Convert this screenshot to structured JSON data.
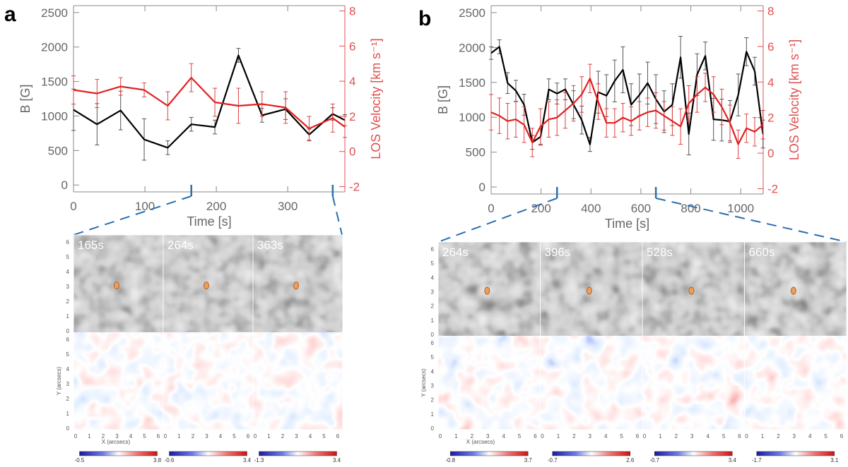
{
  "chart_data": [
    {
      "panel_label": "a",
      "type": "line",
      "xlabel": "Time [s]",
      "ylabel_left": "B [G]",
      "ylabel_right": "LOS Velocity [km s⁻¹]",
      "xlim": [
        0,
        380
      ],
      "ylim_left": [
        -100,
        2600
      ],
      "ylim_right": [
        -2.3,
        8.3
      ],
      "xticks": [
        0,
        100,
        200,
        300
      ],
      "yticks_left": [
        0,
        500,
        1000,
        1500,
        2000,
        2500
      ],
      "yticks_right": [
        -2,
        0,
        2,
        4,
        6,
        8
      ],
      "series": [
        {
          "name": "B",
          "axis": "left",
          "color": "#000000",
          "x": [
            0,
            33,
            66,
            99,
            132,
            165,
            198,
            231,
            264,
            297,
            330,
            363,
            380
          ],
          "values": [
            1090,
            880,
            1080,
            660,
            540,
            880,
            840,
            1880,
            1010,
            1100,
            730,
            1030,
            940
          ],
          "errors": [
            300,
            300,
            280,
            300,
            100,
            100,
            100,
            100,
            100,
            150,
            80,
            90,
            80
          ]
        },
        {
          "name": "LOS Velocity",
          "axis": "right",
          "color": "#e02020",
          "x": [
            0,
            33,
            66,
            99,
            132,
            165,
            198,
            231,
            264,
            297,
            330,
            363,
            380
          ],
          "values": [
            3.5,
            3.3,
            3.7,
            3.5,
            2.6,
            4.2,
            2.8,
            2.6,
            2.7,
            2.5,
            1.3,
            1.9,
            1.4
          ],
          "errors": [
            0.8,
            0.8,
            0.5,
            0.4,
            0.8,
            0.8,
            0.8,
            1.0,
            0.7,
            0.9,
            0.7,
            0.8,
            0.6
          ]
        }
      ],
      "marked_times": [
        165,
        363
      ],
      "snapshots": [
        {
          "time_label": "165s",
          "colorbar_min": "-0.5",
          "colorbar_max": "3.8"
        },
        {
          "time_label": "264s",
          "colorbar_min": "-0.6",
          "colorbar_max": "3.4"
        },
        {
          "time_label": "363s",
          "colorbar_min": "-1.3",
          "colorbar_max": "3.4"
        }
      ],
      "map_axes": {
        "xlabel": "X (arcsecs)",
        "ylabel": "Y (arcsecs)",
        "ticks": [
          "0",
          "1",
          "2",
          "3",
          "4",
          "5",
          "6"
        ]
      }
    },
    {
      "panel_label": "b",
      "type": "line",
      "xlabel": "Time [s]",
      "ylabel_left": "B [G]",
      "ylabel_right": "LOS Velocity [km s⁻¹]",
      "xlim": [
        0,
        1090
      ],
      "ylim_left": [
        -100,
        2600
      ],
      "ylim_right": [
        -2.3,
        8.3
      ],
      "xticks": [
        0,
        200,
        400,
        600,
        800,
        1000
      ],
      "yticks_left": [
        0,
        500,
        1000,
        1500,
        2000,
        2500
      ],
      "yticks_right": [
        -2,
        0,
        2,
        4,
        6,
        8
      ],
      "series": [
        {
          "name": "B",
          "axis": "left",
          "color": "#000000",
          "x": [
            0,
            33,
            66,
            99,
            132,
            165,
            198,
            231,
            264,
            297,
            330,
            363,
            396,
            429,
            462,
            495,
            528,
            561,
            594,
            627,
            660,
            693,
            726,
            759,
            792,
            825,
            858,
            891,
            924,
            957,
            990,
            1023,
            1056,
            1089
          ],
          "values": [
            1920,
            2010,
            1490,
            1380,
            1180,
            640,
            720,
            1400,
            1340,
            1400,
            1180,
            960,
            610,
            1360,
            1310,
            1520,
            1680,
            1180,
            1320,
            1490,
            1260,
            1080,
            1180,
            1860,
            760,
            1610,
            1880,
            970,
            960,
            940,
            1320,
            1940,
            1660,
            760
          ],
          "errors": [
            90,
            100,
            150,
            150,
            150,
            100,
            120,
            150,
            150,
            150,
            200,
            200,
            100,
            300,
            300,
            300,
            330,
            300,
            300,
            300,
            350,
            300,
            300,
            300,
            300,
            300,
            200,
            300,
            300,
            300,
            300,
            200,
            200,
            200
          ]
        },
        {
          "name": "LOS Velocity",
          "axis": "right",
          "color": "#e02020",
          "x": [
            0,
            33,
            66,
            99,
            132,
            165,
            198,
            231,
            264,
            297,
            330,
            363,
            396,
            429,
            462,
            495,
            528,
            561,
            594,
            627,
            660,
            693,
            726,
            759,
            792,
            825,
            858,
            891,
            924,
            957,
            990,
            1023,
            1056,
            1089
          ],
          "values": [
            2.3,
            2.1,
            1.8,
            1.9,
            1.6,
            0.6,
            1.5,
            1.9,
            2.0,
            2.4,
            2.8,
            3.3,
            4.2,
            2.9,
            1.7,
            1.7,
            2.0,
            1.8,
            2.1,
            2.3,
            2.4,
            2.1,
            1.8,
            1.5,
            2.8,
            3.3,
            3.7,
            3.3,
            2.6,
            1.7,
            0.5,
            1.4,
            1.2,
            1.6
          ],
          "errors": [
            1.0,
            1.0,
            1.0,
            1.0,
            1.0,
            0.8,
            1.0,
            1.0,
            1.0,
            1.0,
            1.0,
            1.0,
            0.8,
            1.0,
            0.8,
            0.8,
            0.8,
            0.8,
            0.8,
            0.8,
            1.0,
            0.8,
            0.8,
            1.0,
            1.0,
            1.0,
            0.8,
            1.0,
            1.0,
            1.0,
            0.8,
            0.8,
            0.8,
            0.8
          ]
        }
      ],
      "marked_times": [
        264,
        660
      ],
      "snapshots": [
        {
          "time_label": "264s",
          "colorbar_min": "-0.8",
          "colorbar_max": "3.7"
        },
        {
          "time_label": "396s",
          "colorbar_min": "-0.7",
          "colorbar_max": "2.6"
        },
        {
          "time_label": "528s",
          "colorbar_min": "-0.7",
          "colorbar_max": "3.4"
        },
        {
          "time_label": "660s",
          "colorbar_min": "-1.7",
          "colorbar_max": "3.1"
        }
      ],
      "map_axes": {
        "xlabel": "X (arcsecs)",
        "ylabel": "Y (arcsecs)",
        "ticks": [
          "0",
          "1",
          "2",
          "3",
          "4",
          "5",
          "6"
        ]
      }
    }
  ],
  "colors": {
    "b_line": "#000000",
    "velocity_line": "#e02020",
    "velocity_axis": "#e05050",
    "zoom_dash": "#2a6fb0",
    "axis_gray": "#888888",
    "text_gray": "#666666"
  }
}
